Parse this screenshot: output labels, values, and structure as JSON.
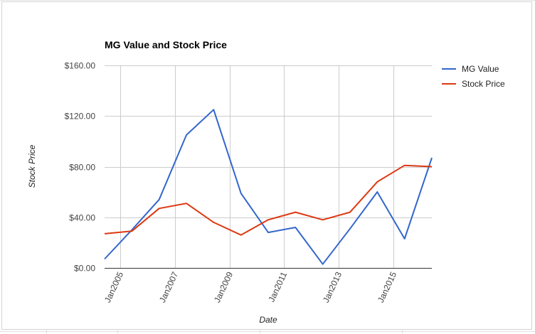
{
  "chart_data": {
    "type": "line",
    "title": "MG Value and Stock Price",
    "xlabel": "Date",
    "ylabel": "Stock Price",
    "x": [
      "2004-06",
      "2005-06",
      "2006-06",
      "2007-06",
      "2008-06",
      "2009-06",
      "2010-06",
      "2011-06",
      "2012-06",
      "2013-06",
      "2014-06",
      "2015-06",
      "2016-06"
    ],
    "x_ticks": [
      "Jan2005",
      "Jan2007",
      "Jan2009",
      "Jan2011",
      "Jan2013",
      "Jan2015"
    ],
    "y_ticks": [
      "$0.00",
      "$40.00",
      "$80.00",
      "$120.00",
      "$160.00"
    ],
    "ylim": [
      0,
      160
    ],
    "grid": true,
    "legend_position": "right",
    "series": [
      {
        "name": "MG Value",
        "color": "#3366cc",
        "values": [
          7,
          30,
          54,
          105,
          125,
          59,
          28,
          32,
          3,
          31,
          60,
          23,
          87
        ]
      },
      {
        "name": "Stock Price",
        "color": "#dc3912",
        "values": [
          27,
          29,
          47,
          51,
          36,
          26,
          38,
          44,
          38,
          44,
          68,
          81,
          80
        ]
      }
    ]
  }
}
